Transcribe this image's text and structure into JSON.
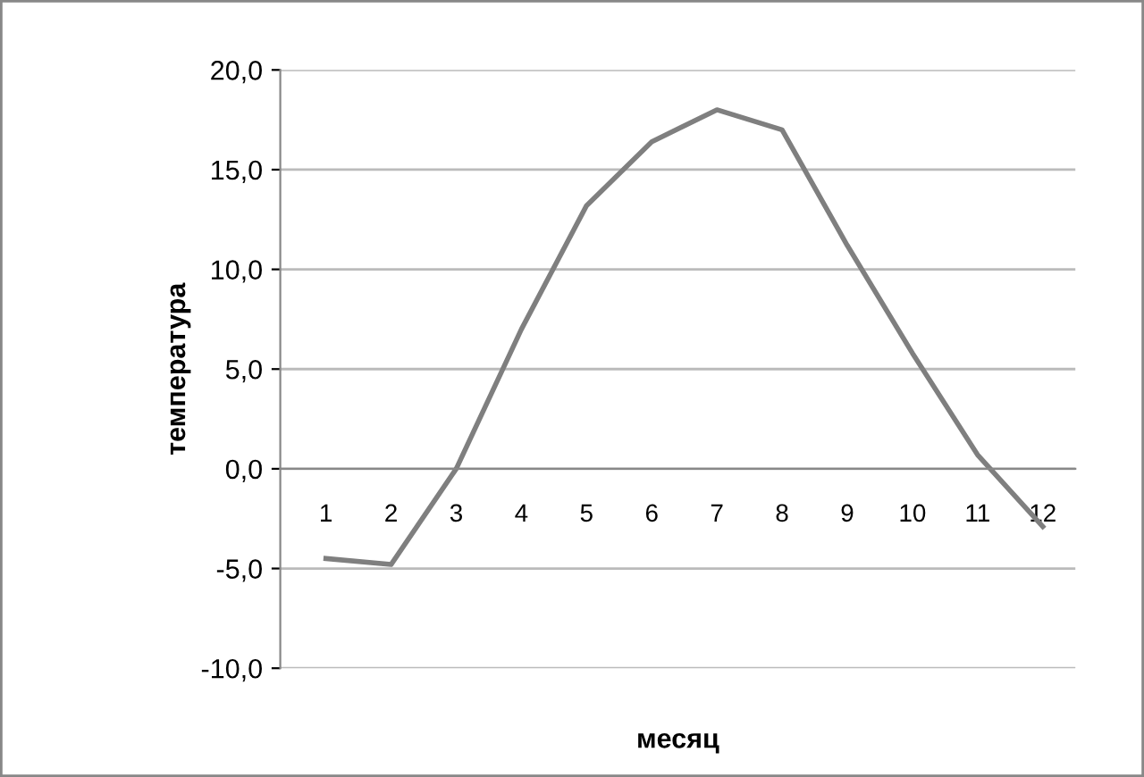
{
  "chart_data": {
    "type": "line",
    "xlabel": "месяц",
    "ylabel": "температура",
    "categories": [
      "1",
      "2",
      "3",
      "4",
      "5",
      "6",
      "7",
      "8",
      "9",
      "10",
      "11",
      "12"
    ],
    "series": [
      {
        "color": "#7f7f7f",
        "values": [
          -4.5,
          -4.8,
          0.0,
          7.0,
          13.2,
          16.4,
          18.0,
          17.0,
          11.2,
          5.8,
          0.7,
          -2.9
        ]
      }
    ],
    "ylim": [
      -10,
      20
    ],
    "yticks": [
      {
        "value": -10,
        "label": "-10,0"
      },
      {
        "value": -5,
        "label": "-5,0"
      },
      {
        "value": 0,
        "label": "0,0"
      },
      {
        "value": 5,
        "label": "5,0"
      },
      {
        "value": 10,
        "label": "10,0"
      },
      {
        "value": 15,
        "label": "15,0"
      },
      {
        "value": 20,
        "label": "20,0"
      }
    ],
    "grid": "y",
    "marker": "none",
    "line_style": "solid",
    "legend": false
  }
}
